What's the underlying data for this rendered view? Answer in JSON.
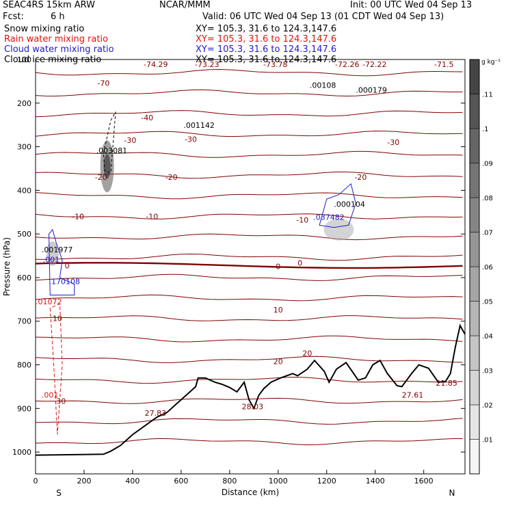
{
  "header": {
    "model": "SEAC4RS 15km ARW",
    "center": "NCAR/MMM",
    "init": "Init: 00 UTC Wed 04 Sep 13",
    "fcst_label": "Fcst:",
    "fcst_value": "6 h",
    "valid": "Valid: 06 UTC Wed 04 Sep 13 (01 CDT Wed 04 Sep 13)",
    "fields": [
      {
        "name": "Snow mixing ratio",
        "xy": "XY=  105.3,  31.6 to 124.3,147.6",
        "color": "#000000"
      },
      {
        "name": "Rain water mixing ratio",
        "xy": "XY=  105.3,  31.6 to 124.3,147.6",
        "color": "#e01010"
      },
      {
        "name": "Cloud water mixing ratio",
        "xy": "XY=  105.3,  31.6 to 124.3,147.6",
        "color": "#1a1ad0"
      },
      {
        "name": "Cloud ice mixing ratio",
        "xy": "XY=  105.3,  31.6 to 124.3,147.6",
        "color": "#000000"
      }
    ]
  },
  "chart_data": {
    "type": "cross-section",
    "xlabel": "Distance (km)",
    "ylabel": "Pressure (hPa)",
    "xlim": [
      0,
      1770
    ],
    "ylim": [
      1050,
      100
    ],
    "x_ticks": [
      0,
      200,
      400,
      600,
      800,
      1000,
      1200,
      1400,
      1600
    ],
    "y_ticks": [
      100,
      200,
      300,
      400,
      500,
      600,
      700,
      800,
      900,
      1000
    ],
    "x_end_labels": [
      "S",
      "N"
    ],
    "colorbar": {
      "unit": "g kg⁻¹",
      "ticks": [
        ".01",
        ".02",
        ".03",
        ".04",
        ".05",
        ".06",
        ".07",
        ".08",
        ".09",
        ".1",
        ".11"
      ]
    },
    "temperature_isotherms": [
      {
        "label": "-70",
        "p": 150
      },
      {
        "label": "-40",
        "p": 243
      },
      {
        "label": "-30",
        "p": 290
      },
      {
        "label": "-20",
        "p": 361
      },
      {
        "label": "-10",
        "p": 456
      },
      {
        "label": "0",
        "p": 566
      },
      {
        "label": "10",
        "p": 666
      },
      {
        "label": "20",
        "p": 797
      }
    ],
    "isotherm_labels": [
      {
        "text": "-70",
        "x": 280,
        "p": 154
      },
      {
        "text": "-40",
        "x": 460,
        "p": 233
      },
      {
        "text": "-30",
        "x": 390,
        "p": 285
      },
      {
        "text": "-30",
        "x": 640,
        "p": 283
      },
      {
        "text": "-30",
        "x": 1475,
        "p": 290
      },
      {
        "text": "-20",
        "x": 270,
        "p": 370
      },
      {
        "text": "-20",
        "x": 560,
        "p": 370
      },
      {
        "text": "-20",
        "x": 1340,
        "p": 370
      },
      {
        "text": "-10",
        "x": 175,
        "p": 460
      },
      {
        "text": "-10",
        "x": 480,
        "p": 460
      },
      {
        "text": "-10",
        "x": 1100,
        "p": 468
      },
      {
        "text": "0",
        "x": 130,
        "p": 573
      },
      {
        "text": "0",
        "x": 1000,
        "p": 574
      },
      {
        "text": "0",
        "x": 1090,
        "p": 566
      },
      {
        "text": "10",
        "x": 90,
        "p": 693
      },
      {
        "text": "10",
        "x": 1000,
        "p": 674
      },
      {
        "text": "20",
        "x": 1000,
        "p": 792
      },
      {
        "text": "20",
        "x": 1120,
        "p": 773
      },
      {
        "text": "30",
        "x": 105,
        "p": 883
      }
    ],
    "top_values": [
      "-74.29",
      "-73.23",
      "-73.78",
      "-72.26",
      "-72.22",
      "-71.5"
    ],
    "annotations": [
      {
        "text": ".00108",
        "x": 1130,
        "p": 165,
        "color": "#000000"
      },
      {
        "text": ".000179",
        "x": 1320,
        "p": 176,
        "color": "#000000"
      },
      {
        "text": ".001142",
        "x": 610,
        "p": 257,
        "color": "#000000"
      },
      {
        "text": ".003081",
        "x": 250,
        "p": 315,
        "color": "#000000"
      },
      {
        "text": ".000104",
        "x": 1230,
        "p": 438,
        "color": "#000000"
      },
      {
        "text": ".037482",
        "x": 1145,
        "p": 468,
        "color": "#1a1ad0"
      },
      {
        "text": ".001977",
        "x": 25,
        "p": 542,
        "color": "#000000"
      },
      {
        "text": ".001",
        "x": 30,
        "p": 565,
        "color": "#1a1ad0"
      },
      {
        "text": ".170108",
        "x": 55,
        "p": 615,
        "color": "#1a1ad0"
      },
      {
        "text": ".01072",
        "x": 0,
        "p": 661,
        "color": "#e01010"
      },
      {
        "text": ".001",
        "x": 25,
        "p": 875,
        "color": "#e01010"
      },
      {
        "text": "27.83",
        "x": 450,
        "p": 917,
        "color": "#800000"
      },
      {
        "text": "28.03",
        "x": 850,
        "p": 902,
        "color": "#800000"
      },
      {
        "text": "27.61",
        "x": 1510,
        "p": 875,
        "color": "#800000"
      },
      {
        "text": "21.85",
        "x": 1650,
        "p": 848,
        "color": "#800000"
      }
    ],
    "terrain": [
      [
        0,
        1007
      ],
      [
        280,
        1005
      ],
      [
        310,
        998
      ],
      [
        350,
        985
      ],
      [
        400,
        960
      ],
      [
        450,
        940
      ],
      [
        500,
        920
      ],
      [
        540,
        910
      ],
      [
        580,
        890
      ],
      [
        620,
        870
      ],
      [
        660,
        850
      ],
      [
        670,
        830
      ],
      [
        700,
        830
      ],
      [
        740,
        840
      ],
      [
        770,
        845
      ],
      [
        800,
        852
      ],
      [
        830,
        862
      ],
      [
        860,
        840
      ],
      [
        880,
        880
      ],
      [
        900,
        900
      ],
      [
        920,
        870
      ],
      [
        940,
        855
      ],
      [
        970,
        840
      ],
      [
        1010,
        830
      ],
      [
        1060,
        820
      ],
      [
        1080,
        825
      ],
      [
        1120,
        810
      ],
      [
        1150,
        790
      ],
      [
        1190,
        815
      ],
      [
        1210,
        840
      ],
      [
        1240,
        810
      ],
      [
        1280,
        795
      ],
      [
        1330,
        835
      ],
      [
        1360,
        830
      ],
      [
        1390,
        800
      ],
      [
        1420,
        790
      ],
      [
        1450,
        820
      ],
      [
        1490,
        848
      ],
      [
        1510,
        850
      ],
      [
        1550,
        820
      ],
      [
        1580,
        800
      ],
      [
        1620,
        808
      ],
      [
        1660,
        840
      ],
      [
        1690,
        838
      ],
      [
        1710,
        820
      ],
      [
        1730,
        760
      ],
      [
        1750,
        710
      ],
      [
        1770,
        730
      ]
    ]
  }
}
